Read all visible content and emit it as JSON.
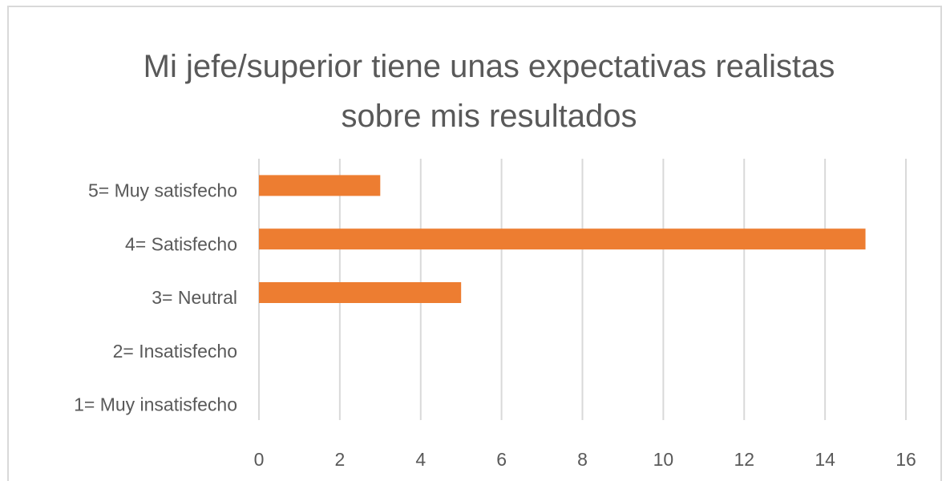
{
  "chart_data": {
    "type": "hbar",
    "title": "Mi jefe/superior tiene unas expectativas realistas sobre mis resultados",
    "categories": [
      "5= Muy satisfecho",
      "4= Satisfecho",
      "3= Neutral",
      "2= Insatisfecho",
      "1= Muy insatisfecho"
    ],
    "values": [
      3,
      15,
      5,
      0,
      0
    ],
    "color": "#ed7d31",
    "xlim": [
      0,
      16
    ],
    "xticks": [
      0,
      2,
      4,
      6,
      8,
      10,
      12,
      14,
      16
    ],
    "grid": true
  }
}
